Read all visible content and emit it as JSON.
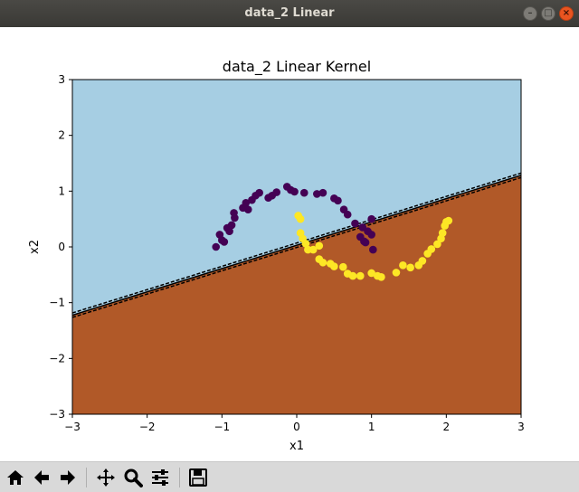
{
  "window": {
    "title": "data_2 Linear",
    "buttons": [
      "minimize",
      "maximize",
      "close"
    ]
  },
  "toolbar": {
    "icons": [
      "home-icon",
      "back-arrow-icon",
      "forward-arrow-icon",
      "pan-icon",
      "zoom-icon",
      "configure-subplots-icon",
      "save-icon"
    ]
  },
  "colors": {
    "region_class0": "#a6cee3",
    "region_class1": "#b15928",
    "class0_points": "#440154",
    "class1_points": "#fde725",
    "boundary": "#000000"
  },
  "chart_data": {
    "type": "scatter",
    "title": "data_2 Linear Kernel",
    "xlabel": "x1",
    "ylabel": "x2",
    "xlim": [
      -3,
      3
    ],
    "ylim": [
      -3,
      3
    ],
    "xticks": [
      -3,
      -2,
      -1,
      0,
      1,
      2,
      3
    ],
    "yticks": [
      -3,
      -2,
      -1,
      0,
      1,
      2,
      3
    ],
    "xtick_labels": [
      "−3",
      "−2",
      "−1",
      "0",
      "1",
      "2",
      "3"
    ],
    "ytick_labels": [
      "−3",
      "−2",
      "−1",
      "0",
      "1",
      "2",
      "3"
    ],
    "grid": false,
    "legend": "none",
    "decision_boundary": {
      "slope": 0.418,
      "intercept": 0.03,
      "margin_offset": 0.04,
      "boundary_style": "solid",
      "margin_style": "dashed"
    },
    "series": [
      {
        "class": 0,
        "points": [
          [
            -1.08,
            0.0
          ],
          [
            -1.03,
            0.22
          ],
          [
            -1.0,
            0.12
          ],
          [
            -0.97,
            0.09
          ],
          [
            -0.93,
            0.34
          ],
          [
            -0.9,
            0.28
          ],
          [
            -0.87,
            0.39
          ],
          [
            -0.84,
            0.61
          ],
          [
            -0.83,
            0.52
          ],
          [
            -0.72,
            0.7
          ],
          [
            -0.68,
            0.79
          ],
          [
            -0.65,
            0.67
          ],
          [
            -0.6,
            0.84
          ],
          [
            -0.55,
            0.92
          ],
          [
            -0.5,
            0.97
          ],
          [
            -0.38,
            0.88
          ],
          [
            -0.33,
            0.92
          ],
          [
            -0.27,
            0.98
          ],
          [
            -0.13,
            1.08
          ],
          [
            -0.08,
            1.02
          ],
          [
            -0.03,
            0.99
          ],
          [
            0.1,
            0.97
          ],
          [
            0.27,
            0.95
          ],
          [
            0.35,
            0.97
          ],
          [
            0.5,
            0.87
          ],
          [
            0.55,
            0.83
          ],
          [
            0.63,
            0.67
          ],
          [
            0.68,
            0.58
          ],
          [
            0.78,
            0.42
          ],
          [
            0.85,
            0.18
          ],
          [
            0.88,
            0.35
          ],
          [
            0.92,
            0.08
          ],
          [
            0.95,
            0.28
          ],
          [
            1.0,
            0.22
          ],
          [
            1.02,
            -0.05
          ],
          [
            1.0,
            0.5
          ],
          [
            0.9,
            0.1
          ]
        ]
      },
      {
        "class": 1,
        "points": [
          [
            0.02,
            0.56
          ],
          [
            0.05,
            0.5
          ],
          [
            0.05,
            0.25
          ],
          [
            0.08,
            0.15
          ],
          [
            0.12,
            0.06
          ],
          [
            0.15,
            -0.05
          ],
          [
            0.22,
            -0.05
          ],
          [
            0.3,
            -0.22
          ],
          [
            0.35,
            -0.28
          ],
          [
            0.45,
            -0.3
          ],
          [
            0.5,
            -0.35
          ],
          [
            0.68,
            -0.48
          ],
          [
            0.75,
            -0.52
          ],
          [
            0.85,
            -0.52
          ],
          [
            1.0,
            -0.47
          ],
          [
            1.08,
            -0.52
          ],
          [
            1.13,
            -0.54
          ],
          [
            1.33,
            -0.46
          ],
          [
            1.42,
            -0.33
          ],
          [
            1.52,
            -0.37
          ],
          [
            1.63,
            -0.33
          ],
          [
            1.68,
            -0.25
          ],
          [
            1.75,
            -0.12
          ],
          [
            1.8,
            -0.04
          ],
          [
            1.88,
            0.05
          ],
          [
            1.93,
            0.15
          ],
          [
            1.95,
            0.25
          ],
          [
            1.98,
            0.38
          ],
          [
            2.0,
            0.45
          ],
          [
            2.03,
            0.47
          ],
          [
            0.3,
            0.02
          ],
          [
            0.62,
            -0.36
          ]
        ]
      }
    ]
  }
}
